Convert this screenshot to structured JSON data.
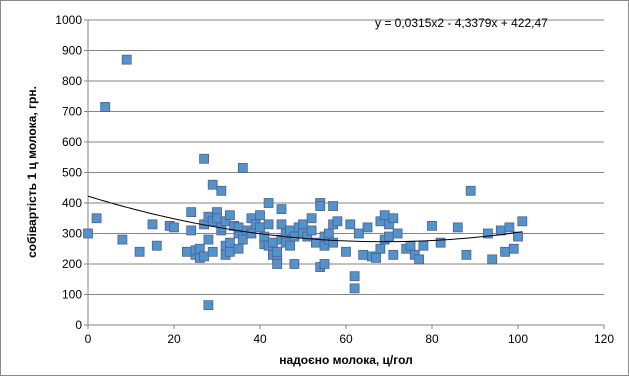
{
  "chart_data": {
    "type": "scatter",
    "title": "",
    "xlabel": "надоєно молока, ц/гол",
    "ylabel": "собівартість 1 ц молока, грн.",
    "xlim": [
      0,
      120
    ],
    "ylim": [
      0,
      1000
    ],
    "x_ticks": [
      "0",
      "20",
      "40",
      "60",
      "80",
      "100",
      "120"
    ],
    "y_ticks": [
      "0",
      "100",
      "200",
      "300",
      "400",
      "500",
      "600",
      "700",
      "800",
      "900",
      "1000"
    ],
    "grid": "horizontal",
    "legend": "none",
    "trendline": {
      "type": "polynomial",
      "equation": "y = 0,0315x2 - 4,3379x + 422,47",
      "coefficients": [
        0.0315,
        -4.3379,
        422.47
      ],
      "x_range": [
        0,
        101
      ]
    },
    "series": [
      {
        "marker": "square",
        "color": "#4f94cd",
        "points": [
          [
            0,
            300
          ],
          [
            2,
            350
          ],
          [
            4,
            715
          ],
          [
            8,
            280
          ],
          [
            9,
            870
          ],
          [
            12,
            240
          ],
          [
            15,
            330
          ],
          [
            16,
            260
          ],
          [
            19,
            325
          ],
          [
            20,
            320
          ],
          [
            23,
            240
          ],
          [
            24,
            370
          ],
          [
            24,
            310
          ],
          [
            25,
            230
          ],
          [
            25,
            245
          ],
          [
            26,
            220
          ],
          [
            26,
            250
          ],
          [
            27,
            545
          ],
          [
            27,
            225
          ],
          [
            27,
            330
          ],
          [
            28,
            280
          ],
          [
            28,
            355
          ],
          [
            28,
            65
          ],
          [
            29,
            460
          ],
          [
            29,
            240
          ],
          [
            29,
            340
          ],
          [
            30,
            370
          ],
          [
            30,
            350
          ],
          [
            31,
            440
          ],
          [
            31,
            310
          ],
          [
            31,
            320
          ],
          [
            32,
            230
          ],
          [
            32,
            260
          ],
          [
            32,
            340
          ],
          [
            33,
            240
          ],
          [
            33,
            270
          ],
          [
            33,
            360
          ],
          [
            34,
            325
          ],
          [
            35,
            250
          ],
          [
            35,
            300
          ],
          [
            35,
            320
          ],
          [
            36,
            515
          ],
          [
            36,
            280
          ],
          [
            37,
            310
          ],
          [
            38,
            300
          ],
          [
            38,
            350
          ],
          [
            39,
            330
          ],
          [
            40,
            360
          ],
          [
            40,
            320
          ],
          [
            41,
            265
          ],
          [
            41,
            290
          ],
          [
            42,
            400
          ],
          [
            42,
            260
          ],
          [
            42,
            330
          ],
          [
            43,
            230
          ],
          [
            43,
            270
          ],
          [
            44,
            215
          ],
          [
            44,
            200
          ],
          [
            44,
            240
          ],
          [
            45,
            330
          ],
          [
            45,
            280
          ],
          [
            45,
            380
          ],
          [
            46,
            300
          ],
          [
            46,
            270
          ],
          [
            47,
            260
          ],
          [
            47,
            310
          ],
          [
            48,
            200
          ],
          [
            48,
            290
          ],
          [
            49,
            320
          ],
          [
            50,
            330
          ],
          [
            50,
            300
          ],
          [
            51,
            290
          ],
          [
            52,
            350
          ],
          [
            52,
            310
          ],
          [
            53,
            270
          ],
          [
            54,
            400
          ],
          [
            54,
            390
          ],
          [
            54,
            190
          ],
          [
            55,
            200
          ],
          [
            55,
            290
          ],
          [
            55,
            260
          ],
          [
            56,
            280
          ],
          [
            56,
            300
          ],
          [
            57,
            390
          ],
          [
            57,
            270
          ],
          [
            57,
            330
          ],
          [
            58,
            340
          ],
          [
            60,
            240
          ],
          [
            61,
            330
          ],
          [
            62,
            160
          ],
          [
            62,
            120
          ],
          [
            63,
            300
          ],
          [
            64,
            230
          ],
          [
            65,
            320
          ],
          [
            66,
            225
          ],
          [
            67,
            220
          ],
          [
            68,
            250
          ],
          [
            68,
            340
          ],
          [
            69,
            280
          ],
          [
            69,
            360
          ],
          [
            70,
            330
          ],
          [
            70,
            290
          ],
          [
            71,
            230
          ],
          [
            71,
            350
          ],
          [
            72,
            300
          ],
          [
            74,
            250
          ],
          [
            75,
            260
          ],
          [
            76,
            230
          ],
          [
            77,
            215
          ],
          [
            78,
            260
          ],
          [
            80,
            325
          ],
          [
            82,
            270
          ],
          [
            86,
            320
          ],
          [
            88,
            230
          ],
          [
            89,
            440
          ],
          [
            93,
            300
          ],
          [
            94,
            215
          ],
          [
            96,
            310
          ],
          [
            97,
            240
          ],
          [
            98,
            320
          ],
          [
            99,
            250
          ],
          [
            100,
            290
          ],
          [
            101,
            340
          ]
        ]
      }
    ]
  }
}
